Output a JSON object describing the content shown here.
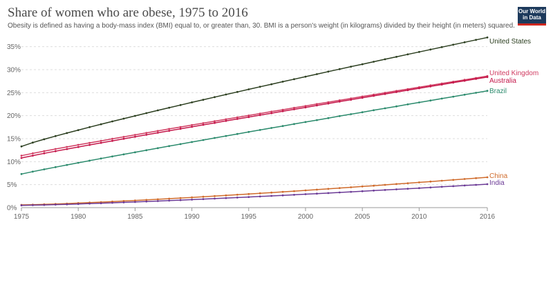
{
  "header": {
    "title": "Share of women who are obese, 1975 to 2016",
    "subtitle": "Obesity is defined as having a body-mass index (BMI) equal to, or greater than, 30. BMI is a person's weight (in kilograms) divided by their height (in meters) squared.",
    "logo_line1": "Our World",
    "logo_line2": "in Data"
  },
  "chart_data": {
    "type": "line",
    "title": "Share of women who are obese, 1975 to 2016",
    "xlabel": "",
    "ylabel": "",
    "xlim": [
      1975,
      2016
    ],
    "ylim": [
      0,
      37
    ],
    "x_ticks": [
      "1975",
      "1980",
      "1985",
      "1990",
      "1995",
      "2000",
      "2005",
      "2010",
      "2016"
    ],
    "y_ticks": [
      "0%",
      "5%",
      "10%",
      "15%",
      "20%",
      "25%",
      "30%",
      "35%"
    ],
    "grid": true,
    "series": [
      {
        "name": "United States",
        "color": "#2b3e1f",
        "start": 13.3,
        "end": 37.0,
        "curve": 0.9
      },
      {
        "name": "United Kingdom",
        "color": "#d03a60",
        "start": 11.3,
        "end": 28.6,
        "curve": 0.95
      },
      {
        "name": "Australia",
        "color": "#c4174a",
        "start": 10.8,
        "end": 28.4,
        "curve": 0.95
      },
      {
        "name": "Brazil",
        "color": "#2a8a6c",
        "start": 7.3,
        "end": 25.4,
        "curve": 0.95
      },
      {
        "name": "China",
        "color": "#cf6a2a",
        "start": 0.6,
        "end": 6.6,
        "curve": 1.3
      },
      {
        "name": "India",
        "color": "#6b3a96",
        "start": 0.5,
        "end": 5.1,
        "curve": 1.3
      }
    ]
  }
}
